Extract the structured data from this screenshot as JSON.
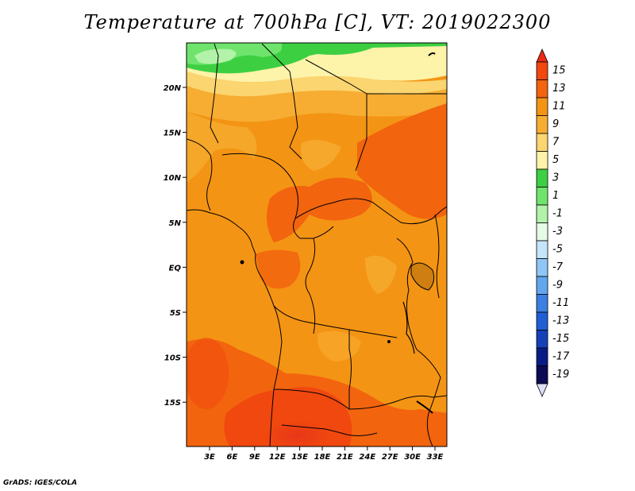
{
  "title": "Temperature at 700hPa [C], VT: 2019022300",
  "credit": "GrADS: IGES/COLA",
  "map": {
    "variable": "Temperature",
    "level": "700hPa",
    "units": "C",
    "valid_time": "2019022300",
    "projection": "latlon",
    "lon_ticks": [
      "3E",
      "6E",
      "9E",
      "12E",
      "15E",
      "18E",
      "21E",
      "24E",
      "27E",
      "30E",
      "33E"
    ],
    "lat_ticks": [
      "20N",
      "15N",
      "10N",
      "5N",
      "EQ",
      "5S",
      "10S",
      "15S"
    ]
  },
  "colorbar": {
    "labels": [
      "15",
      "13",
      "11",
      "9",
      "7",
      "5",
      "3",
      "1",
      "-1",
      "-3",
      "-5",
      "-7",
      "-9",
      "-11",
      "-13",
      "-15",
      "-17",
      "-19"
    ],
    "colors": [
      "#ea2a17",
      "#f0480f",
      "#f2640e",
      "#f49414",
      "#f6ad32",
      "#fbd56f",
      "#fdf3a9",
      "#3dcf42",
      "#6fe46d",
      "#b2f2a9",
      "#e4fbe5",
      "#c5e5fb",
      "#8fc6f5",
      "#62a7ed",
      "#3b7fe3",
      "#1f5fd6",
      "#1540b8",
      "#0b1b85",
      "#0a0a55",
      "#dde0f5"
    ]
  }
}
